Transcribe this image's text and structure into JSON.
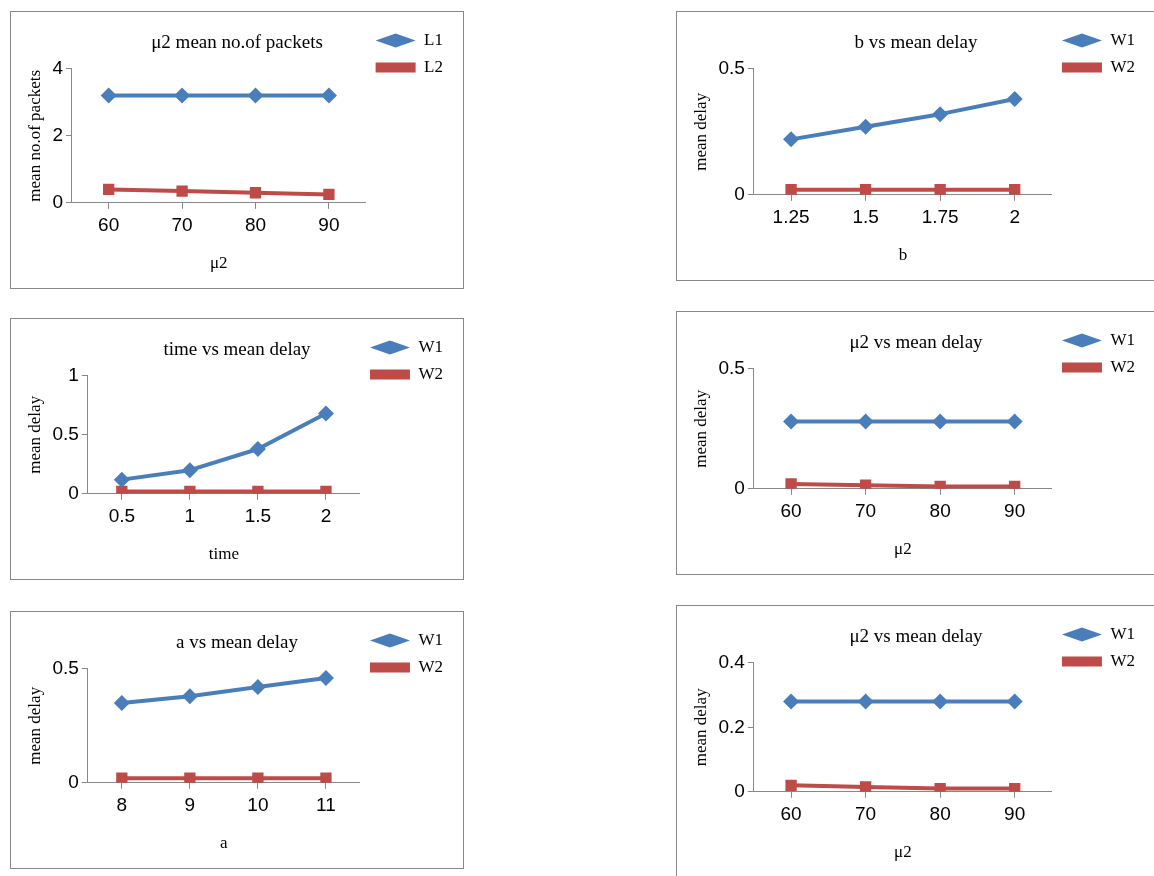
{
  "chart_data": [
    {
      "type": "line",
      "title": "μ2 mean no.of packets",
      "xlabel": "μ2",
      "ylabel": "mean no.of packets",
      "categories": [
        "60",
        "70",
        "80",
        "90"
      ],
      "ylim": [
        0,
        4
      ],
      "yticks": [
        0,
        2,
        4
      ],
      "grid": false,
      "legend": "top right",
      "line_style": "solid",
      "series": [
        {
          "name": "L1",
          "color": "#4a7ebb",
          "marker": "diamond",
          "values": [
            3.2,
            3.2,
            3.2,
            3.2
          ]
        },
        {
          "name": "L2",
          "color": "#be4b48",
          "marker": "square",
          "values": [
            0.4,
            0.35,
            0.3,
            0.25
          ]
        }
      ]
    },
    {
      "type": "line",
      "title": "b vs mean delay",
      "xlabel": "b",
      "ylabel": "mean delay",
      "categories": [
        "1.25",
        "1.5",
        "1.75",
        "2"
      ],
      "ylim": [
        0,
        0.5
      ],
      "yticks": [
        0,
        0.5
      ],
      "grid": false,
      "legend": "top right",
      "line_style": "solid",
      "series": [
        {
          "name": "W1",
          "color": "#4a7ebb",
          "marker": "diamond",
          "values": [
            0.22,
            0.27,
            0.32,
            0.38
          ]
        },
        {
          "name": "W2",
          "color": "#be4b48",
          "marker": "square",
          "values": [
            0.02,
            0.02,
            0.02,
            0.02
          ]
        }
      ]
    },
    {
      "type": "line",
      "title": "time vs mean delay",
      "xlabel": "time",
      "ylabel": "mean delay",
      "categories": [
        "0.5",
        "1",
        "1.5",
        "2"
      ],
      "ylim": [
        0,
        1
      ],
      "yticks": [
        0,
        0.5,
        1
      ],
      "grid": false,
      "legend": "top right",
      "line_style": "solid",
      "series": [
        {
          "name": "W1",
          "color": "#4a7ebb",
          "marker": "diamond",
          "values": [
            0.12,
            0.2,
            0.38,
            0.68
          ]
        },
        {
          "name": "W2",
          "color": "#be4b48",
          "marker": "square",
          "values": [
            0.02,
            0.02,
            0.02,
            0.02
          ]
        }
      ]
    },
    {
      "type": "line",
      "title": "μ2 vs mean delay",
      "xlabel": "μ2",
      "ylabel": "mean delay",
      "categories": [
        "60",
        "70",
        "80",
        "90"
      ],
      "ylim": [
        0,
        0.5
      ],
      "yticks": [
        0,
        0.5
      ],
      "grid": false,
      "legend": "top right",
      "line_style": "solid",
      "series": [
        {
          "name": "W1",
          "color": "#4a7ebb",
          "marker": "diamond",
          "values": [
            0.28,
            0.28,
            0.28,
            0.28
          ]
        },
        {
          "name": "W2",
          "color": "#be4b48",
          "marker": "square",
          "values": [
            0.02,
            0.015,
            0.01,
            0.01
          ]
        }
      ]
    },
    {
      "type": "line",
      "title": "a vs mean delay",
      "xlabel": "a",
      "ylabel": "mean delay",
      "categories": [
        "8",
        "9",
        "10",
        "11"
      ],
      "ylim": [
        0,
        0.5
      ],
      "yticks": [
        0,
        0.5
      ],
      "grid": false,
      "legend": "top right",
      "line_style": "solid",
      "series": [
        {
          "name": "W1",
          "color": "#4a7ebb",
          "marker": "diamond",
          "values": [
            0.35,
            0.38,
            0.42,
            0.46
          ]
        },
        {
          "name": "W2",
          "color": "#be4b48",
          "marker": "square",
          "values": [
            0.02,
            0.02,
            0.02,
            0.02
          ]
        }
      ]
    },
    {
      "type": "line",
      "title": "μ2 vs mean delay",
      "xlabel": "μ2",
      "ylabel": "mean delay",
      "categories": [
        "60",
        "70",
        "80",
        "90"
      ],
      "ylim": [
        0,
        0.4
      ],
      "yticks": [
        0,
        0.2,
        0.4
      ],
      "grid": false,
      "legend": "top right",
      "line_style": "solid",
      "series": [
        {
          "name": "W1",
          "color": "#4a7ebb",
          "marker": "diamond",
          "values": [
            0.28,
            0.28,
            0.28,
            0.28
          ]
        },
        {
          "name": "W2",
          "color": "#be4b48",
          "marker": "square",
          "values": [
            0.02,
            0.015,
            0.01,
            0.01
          ]
        }
      ]
    }
  ]
}
